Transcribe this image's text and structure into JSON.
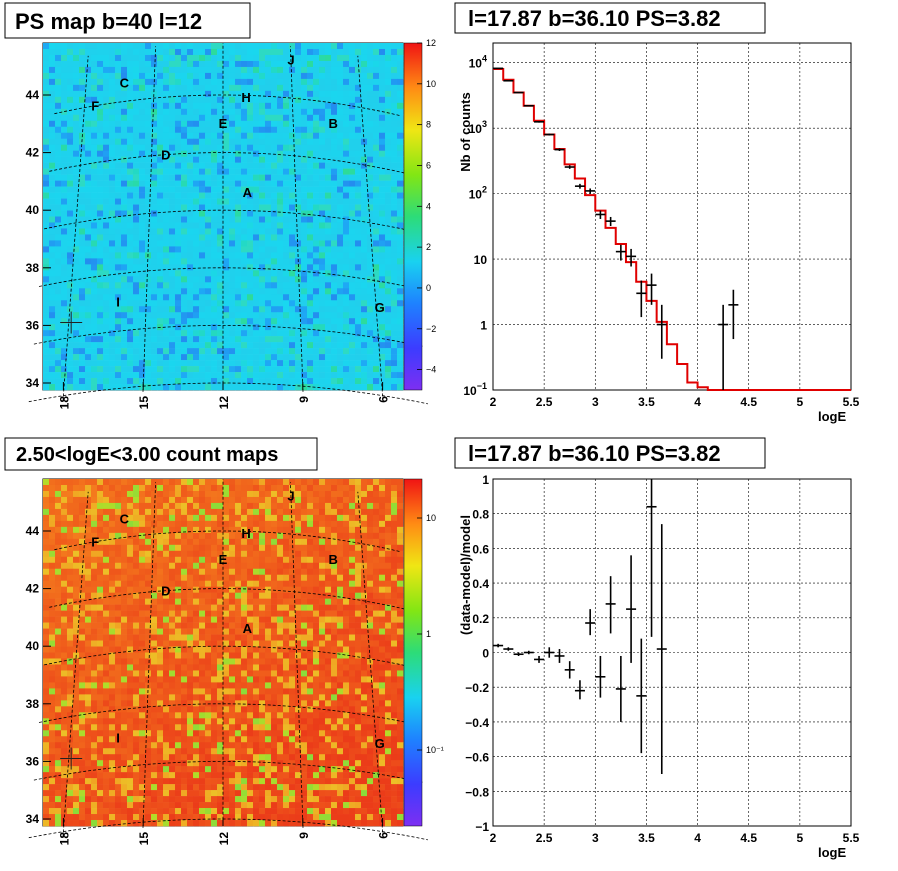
{
  "chart_data": [
    {
      "type": "heatmap",
      "title": "PS map b=40 l=12",
      "x_ticks": [
        "18",
        "15",
        "12",
        "9",
        "6"
      ],
      "y_ticks": [
        "34",
        "36",
        "38",
        "40",
        "42",
        "44"
      ],
      "colorbar_ticks": [
        "12",
        "10",
        "8",
        "6",
        "4",
        "2",
        "0",
        "−2",
        "−4"
      ],
      "color_range": [
        -5,
        12
      ],
      "sources": [
        {
          "name": "C",
          "l": 16.3,
          "b": 44.4
        },
        {
          "name": "F",
          "l": 17.5,
          "b": 43.6
        },
        {
          "name": "J",
          "l": 9.0,
          "b": 45.2
        },
        {
          "name": "H",
          "l": 11.0,
          "b": 43.9
        },
        {
          "name": "E",
          "l": 12.0,
          "b": 43.0
        },
        {
          "name": "B",
          "l": 7.3,
          "b": 43.0
        },
        {
          "name": "D",
          "l": 14.4,
          "b": 41.9
        },
        {
          "name": "A",
          "l": 11.0,
          "b": 40.6
        },
        {
          "name": "I",
          "l": 16.1,
          "b": 36.8
        },
        {
          "name": "G",
          "l": 5.9,
          "b": 36.6
        }
      ]
    },
    {
      "type": "line",
      "title": "l=17.87 b=36.10 PS=3.82",
      "xlabel": "logE",
      "ylabel": "Nb of counts",
      "xlim": [
        2,
        5.5
      ],
      "ylim": [
        0.1,
        20000
      ],
      "y_scale": "log",
      "x_ticks": [
        "2",
        "2.5",
        "3",
        "3.5",
        "4",
        "4.5",
        "5",
        "5.5"
      ],
      "y_ticks": [
        {
          "base": "10",
          "exp": "−1",
          "value": 0.1
        },
        {
          "base": "1",
          "exp": "",
          "value": 1
        },
        {
          "base": "10",
          "exp": "",
          "value": 10
        },
        {
          "base": "10",
          "exp": "2",
          "value": 100
        },
        {
          "base": "10",
          "exp": "3",
          "value": 1000
        },
        {
          "base": "10",
          "exp": "4",
          "value": 10000
        }
      ],
      "model_step": {
        "color": "#e00000",
        "bin_edges": [
          2.0,
          2.1,
          2.2,
          2.3,
          2.4,
          2.5,
          2.6,
          2.7,
          2.8,
          2.9,
          3.0,
          3.1,
          3.2,
          3.3,
          3.4,
          3.5,
          3.6,
          3.7,
          3.8,
          3.9,
          4.0,
          4.1,
          4.2,
          4.3,
          5.5
        ],
        "values": [
          8000,
          5500,
          3500,
          2200,
          1300,
          800,
          480,
          280,
          170,
          95,
          55,
          30,
          17,
          9,
          4.5,
          2.3,
          1.1,
          0.5,
          0.25,
          0.13,
          0.11,
          0.1,
          0.1,
          0.1
        ]
      },
      "points": [
        {
          "x": 2.05,
          "y": 8200,
          "lo": 8100,
          "hi": 8300
        },
        {
          "x": 2.15,
          "y": 5300,
          "lo": 5230,
          "hi": 5370
        },
        {
          "x": 2.25,
          "y": 3500,
          "lo": 3440,
          "hi": 3560
        },
        {
          "x": 2.35,
          "y": 2200,
          "lo": 2150,
          "hi": 2250
        },
        {
          "x": 2.45,
          "y": 1250,
          "lo": 1215,
          "hi": 1285
        },
        {
          "x": 2.55,
          "y": 800,
          "lo": 772,
          "hi": 828
        },
        {
          "x": 2.65,
          "y": 470,
          "lo": 448,
          "hi": 492
        },
        {
          "x": 2.75,
          "y": 255,
          "lo": 239,
          "hi": 271
        },
        {
          "x": 2.85,
          "y": 130,
          "lo": 119,
          "hi": 141
        },
        {
          "x": 2.95,
          "y": 110,
          "lo": 100,
          "hi": 120
        },
        {
          "x": 3.05,
          "y": 48,
          "lo": 41,
          "hi": 55
        },
        {
          "x": 3.15,
          "y": 38,
          "lo": 32,
          "hi": 44
        },
        {
          "x": 3.25,
          "y": 13,
          "lo": 9.5,
          "hi": 16.5
        },
        {
          "x": 3.35,
          "y": 11,
          "lo": 7.7,
          "hi": 14.3
        },
        {
          "x": 3.45,
          "y": 3,
          "lo": 1.3,
          "hi": 4.7
        },
        {
          "x": 3.55,
          "y": 4,
          "lo": 2.0,
          "hi": 6.0
        },
        {
          "x": 3.65,
          "y": 1,
          "lo": 0.3,
          "hi": 2.0
        },
        {
          "x": 4.25,
          "y": 1,
          "lo": 0.1,
          "hi": 2.0
        },
        {
          "x": 4.35,
          "y": 2,
          "lo": 0.6,
          "hi": 3.4
        }
      ]
    },
    {
      "type": "heatmap",
      "title": "2.50<logE<3.00 count maps",
      "x_ticks": [
        "18",
        "15",
        "12",
        "9",
        "6"
      ],
      "y_ticks": [
        "34",
        "36",
        "38",
        "40",
        "42",
        "44"
      ],
      "colorbar_ticks": [
        "10",
        "1",
        "10⁻¹"
      ],
      "color_scale": "log",
      "sources": [
        {
          "name": "C",
          "l": 16.3,
          "b": 44.4
        },
        {
          "name": "F",
          "l": 17.5,
          "b": 43.6
        },
        {
          "name": "J",
          "l": 9.0,
          "b": 45.2
        },
        {
          "name": "H",
          "l": 11.0,
          "b": 43.9
        },
        {
          "name": "E",
          "l": 12.0,
          "b": 43.0
        },
        {
          "name": "B",
          "l": 7.3,
          "b": 43.0
        },
        {
          "name": "D",
          "l": 14.4,
          "b": 41.9
        },
        {
          "name": "A",
          "l": 11.0,
          "b": 40.6
        },
        {
          "name": "I",
          "l": 16.1,
          "b": 36.8
        },
        {
          "name": "G",
          "l": 5.9,
          "b": 36.6
        }
      ]
    },
    {
      "type": "scatter",
      "title": "l=17.87 b=36.10 PS=3.82",
      "xlabel": "logE",
      "ylabel": "(data-model)/model",
      "xlim": [
        2,
        5.5
      ],
      "ylim": [
        -1,
        1
      ],
      "x_ticks": [
        "2",
        "2.5",
        "3",
        "3.5",
        "4",
        "4.5",
        "5",
        "5.5"
      ],
      "y_ticks": [
        "−1",
        "−0.8",
        "−0.6",
        "−0.4",
        "−0.2",
        "0",
        "0.2",
        "0.4",
        "0.6",
        "0.8",
        "1"
      ],
      "points": [
        {
          "x": 2.05,
          "y": 0.04,
          "lo": 0.03,
          "hi": 0.05
        },
        {
          "x": 2.15,
          "y": 0.02,
          "lo": 0.01,
          "hi": 0.03
        },
        {
          "x": 2.25,
          "y": -0.01,
          "lo": -0.02,
          "hi": 0.0
        },
        {
          "x": 2.35,
          "y": 0.0,
          "lo": -0.01,
          "hi": 0.01
        },
        {
          "x": 2.45,
          "y": -0.04,
          "lo": -0.06,
          "hi": -0.02
        },
        {
          "x": 2.55,
          "y": 0.0,
          "lo": -0.03,
          "hi": 0.03
        },
        {
          "x": 2.65,
          "y": -0.02,
          "lo": -0.06,
          "hi": 0.02
        },
        {
          "x": 2.75,
          "y": -0.1,
          "lo": -0.15,
          "hi": -0.05
        },
        {
          "x": 2.85,
          "y": -0.22,
          "lo": -0.27,
          "hi": -0.16
        },
        {
          "x": 2.95,
          "y": 0.17,
          "lo": 0.1,
          "hi": 0.25
        },
        {
          "x": 3.05,
          "y": -0.14,
          "lo": -0.26,
          "hi": -0.02
        },
        {
          "x": 3.15,
          "y": 0.28,
          "lo": 0.11,
          "hi": 0.44
        },
        {
          "x": 3.25,
          "y": -0.21,
          "lo": -0.4,
          "hi": -0.02
        },
        {
          "x": 3.35,
          "y": 0.25,
          "lo": -0.06,
          "hi": 0.56
        },
        {
          "x": 3.45,
          "y": -0.25,
          "lo": -0.58,
          "hi": 0.08
        },
        {
          "x": 3.55,
          "y": 0.84,
          "lo": 0.09,
          "hi": 1.0
        },
        {
          "x": 3.65,
          "y": 0.02,
          "lo": -0.7,
          "hi": 0.74
        }
      ]
    }
  ]
}
